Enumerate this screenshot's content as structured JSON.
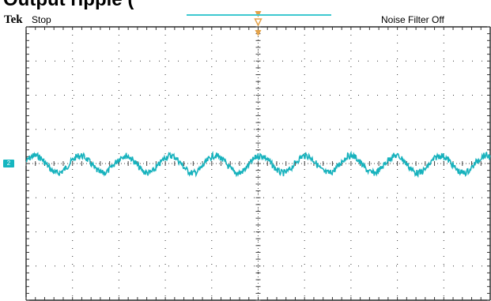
{
  "caption": "Output ripple (",
  "header": {
    "brand": "Tek",
    "run_status": "Stop",
    "noise_filter": "Noise Filter Off"
  },
  "channel_marker": {
    "label": "2",
    "color": "#15b6c0"
  },
  "trigger": {
    "color": "#e3a24a"
  },
  "trace": {
    "color": "#17b2bd"
  },
  "record_bar": {
    "color": "#3ec8d0"
  }
}
